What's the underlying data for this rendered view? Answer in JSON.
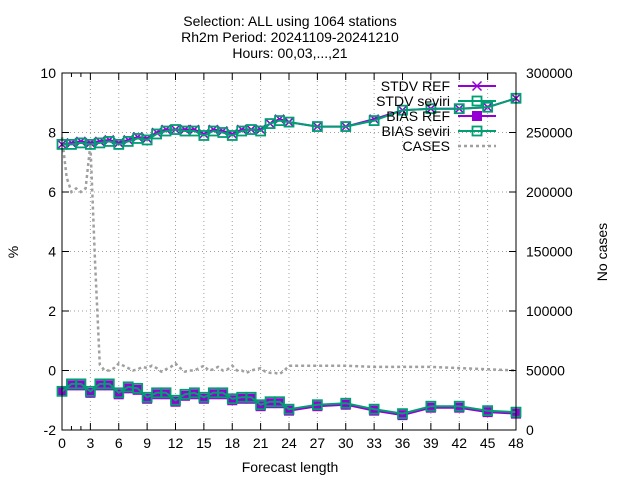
{
  "chart_data": {
    "type": "line",
    "title_lines": [
      "Selection: ALL using  1064 stations",
      "Rh2m   Period: 20241109-20241210",
      "Hours: 00,03,...,21"
    ],
    "xlabel": "Forecast length",
    "ylabel": "%",
    "y2label": "No cases",
    "xlim": [
      0,
      48
    ],
    "ylim": [
      -2,
      10
    ],
    "y2lim": [
      0,
      300000
    ],
    "x_ticks": [
      0,
      3,
      6,
      9,
      12,
      15,
      18,
      21,
      24,
      27,
      30,
      33,
      36,
      39,
      42,
      45,
      48
    ],
    "x_minor_ticks": [
      1,
      2
    ],
    "y_ticks": [
      -2,
      0,
      2,
      4,
      6,
      8,
      10
    ],
    "y2_ticks": [
      0,
      50000,
      100000,
      150000,
      200000,
      250000,
      300000
    ],
    "grid": true,
    "legend_position": "top-right",
    "colors": {
      "ref": "#9400d3",
      "seviri": "#009e73",
      "cases": "#a0a0a0",
      "grid": "#a0a0a0"
    },
    "series": [
      {
        "name": "STDV REF",
        "axis": "y",
        "marker": "x",
        "x": [
          0,
          1,
          2,
          3,
          4,
          5,
          6,
          7,
          8,
          9,
          10,
          11,
          12,
          13,
          14,
          15,
          16,
          17,
          18,
          19,
          20,
          21,
          22,
          23,
          24,
          27,
          30,
          33,
          36,
          39,
          42,
          45,
          48
        ],
        "values": [
          7.6,
          7.65,
          7.7,
          7.65,
          7.7,
          7.75,
          7.65,
          7.75,
          7.85,
          7.8,
          8.0,
          8.1,
          8.1,
          8.1,
          8.1,
          7.95,
          8.1,
          8.05,
          7.95,
          8.1,
          8.1,
          8.1,
          8.3,
          8.45,
          8.35,
          8.2,
          8.2,
          8.45,
          8.75,
          8.8,
          8.8,
          8.85,
          9.15
        ]
      },
      {
        "name": "STDV seviri",
        "axis": "y",
        "marker": "box",
        "x": [
          0,
          1,
          2,
          3,
          4,
          5,
          6,
          7,
          8,
          9,
          10,
          11,
          12,
          13,
          14,
          15,
          16,
          17,
          18,
          19,
          20,
          21,
          22,
          23,
          24,
          27,
          30,
          33,
          36,
          39,
          42,
          45,
          48
        ],
        "values": [
          7.6,
          7.6,
          7.65,
          7.6,
          7.65,
          7.7,
          7.6,
          7.7,
          7.8,
          7.75,
          7.95,
          8.05,
          8.1,
          8.05,
          8.05,
          7.9,
          8.05,
          8.0,
          7.9,
          8.05,
          8.1,
          8.05,
          8.3,
          8.4,
          8.35,
          8.2,
          8.2,
          8.4,
          8.75,
          8.8,
          8.8,
          8.85,
          9.15
        ]
      },
      {
        "name": "BIAS REF",
        "axis": "y",
        "marker": "box-filled",
        "x": [
          0,
          1,
          2,
          3,
          4,
          5,
          6,
          7,
          8,
          9,
          10,
          11,
          12,
          13,
          14,
          15,
          16,
          17,
          18,
          19,
          20,
          21,
          22,
          23,
          24,
          27,
          30,
          33,
          36,
          39,
          42,
          45,
          48
        ],
        "values": [
          -0.7,
          -0.5,
          -0.5,
          -0.75,
          -0.5,
          -0.5,
          -0.8,
          -0.6,
          -0.65,
          -0.95,
          -0.8,
          -0.8,
          -1.05,
          -0.85,
          -0.8,
          -0.95,
          -0.8,
          -0.8,
          -1.0,
          -0.95,
          -0.95,
          -1.2,
          -1.1,
          -1.1,
          -1.35,
          -1.2,
          -1.15,
          -1.35,
          -1.5,
          -1.25,
          -1.25,
          -1.4,
          -1.45
        ]
      },
      {
        "name": "BIAS seviri",
        "axis": "y",
        "marker": "box",
        "x": [
          0,
          1,
          2,
          3,
          4,
          5,
          6,
          7,
          8,
          9,
          10,
          11,
          12,
          13,
          14,
          15,
          16,
          17,
          18,
          19,
          20,
          21,
          22,
          23,
          24,
          27,
          30,
          33,
          36,
          39,
          42,
          45,
          48
        ],
        "values": [
          -0.7,
          -0.45,
          -0.45,
          -0.7,
          -0.45,
          -0.45,
          -0.75,
          -0.55,
          -0.6,
          -0.9,
          -0.75,
          -0.75,
          -1.0,
          -0.8,
          -0.75,
          -0.9,
          -0.75,
          -0.75,
          -0.95,
          -0.9,
          -0.9,
          -1.15,
          -1.05,
          -1.05,
          -1.3,
          -1.15,
          -1.1,
          -1.3,
          -1.45,
          -1.2,
          -1.2,
          -1.35,
          -1.4
        ]
      },
      {
        "name": "CASES",
        "axis": "y2",
        "style": "dotted",
        "x": [
          0,
          0.5,
          1,
          1.5,
          2,
          2.5,
          3,
          3.5,
          4,
          4.5,
          5,
          5.5,
          6,
          6.5,
          7,
          7.5,
          8,
          8.5,
          9,
          9.5,
          10,
          10.5,
          11,
          11.5,
          12,
          12.5,
          13,
          13.5,
          14,
          14.5,
          15,
          15.5,
          16,
          16.5,
          17,
          17.5,
          18,
          18.5,
          19,
          19.5,
          20,
          20.5,
          21,
          21.5,
          22,
          22.5,
          23,
          23.5,
          24,
          27,
          30,
          33,
          36,
          39,
          42,
          45,
          48
        ],
        "values": [
          246000,
          212000,
          200000,
          203000,
          200000,
          203000,
          240000,
          140000,
          55000,
          50000,
          50000,
          52000,
          56000,
          54000,
          52000,
          50000,
          51000,
          53000,
          52000,
          54000,
          52000,
          49000,
          51000,
          53000,
          56000,
          52000,
          49000,
          50000,
          50000,
          52000,
          54000,
          50000,
          51000,
          53000,
          50000,
          51000,
          54000,
          50000,
          50000,
          48000,
          50000,
          51000,
          52000,
          49000,
          48000,
          48000,
          47000,
          50000,
          54000,
          54000,
          54000,
          53000,
          53000,
          53000,
          52000,
          51000,
          50000
        ]
      }
    ]
  }
}
